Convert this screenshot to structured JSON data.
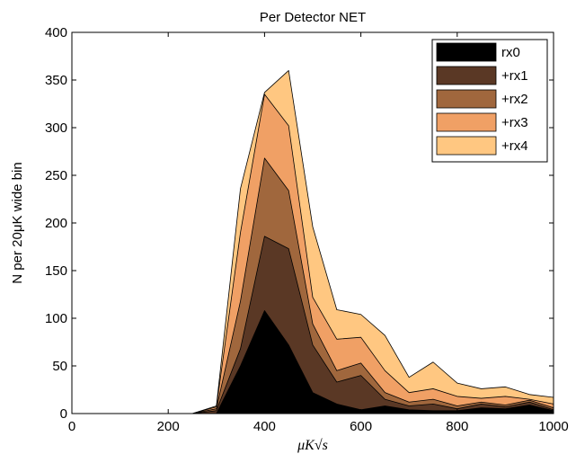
{
  "chart_data": {
    "type": "area",
    "title": "Per Detector NET",
    "xlabel": "μK√s",
    "ylabel": "N per 20μK wide bin",
    "xlim": [
      0,
      1000
    ],
    "ylim": [
      0,
      400
    ],
    "xticks": [
      0,
      200,
      400,
      600,
      800,
      1000
    ],
    "yticks": [
      0,
      50,
      100,
      150,
      200,
      250,
      300,
      350,
      400
    ],
    "grid": false,
    "stacked": true,
    "legend_position": "top-right",
    "x": [
      0,
      50,
      100,
      150,
      200,
      250,
      300,
      350,
      400,
      450,
      500,
      550,
      600,
      650,
      700,
      750,
      800,
      850,
      900,
      950,
      1000
    ],
    "series": [
      {
        "name": "rx0",
        "color": "#000000",
        "values": [
          0,
          0,
          0,
          0,
          0,
          0,
          0,
          50,
          108,
          72,
          22,
          10,
          4,
          8,
          4,
          3,
          3,
          6,
          5,
          9,
          3
        ]
      },
      {
        "name": "+rx1",
        "color": "#5a3825",
        "values": [
          0,
          0,
          0,
          0,
          0,
          0,
          3,
          68,
          186,
          173,
          72,
          33,
          40,
          15,
          8,
          10,
          5,
          10,
          7,
          12,
          4
        ]
      },
      {
        "name": "+rx2",
        "color": "#a0673d",
        "values": [
          0,
          0,
          0,
          0,
          0,
          0,
          5,
          118,
          268,
          234,
          94,
          45,
          53,
          22,
          12,
          15,
          8,
          12,
          9,
          14,
          6
        ]
      },
      {
        "name": "+rx3",
        "color": "#f0a065",
        "values": [
          0,
          0,
          0,
          0,
          0,
          0,
          7,
          190,
          335,
          302,
          122,
          78,
          80,
          45,
          22,
          26,
          18,
          16,
          18,
          15,
          10
        ]
      },
      {
        "name": "+rx4",
        "color": "#ffc781",
        "values": [
          0,
          0,
          0,
          0,
          0,
          0,
          8,
          236,
          337,
          360,
          196,
          109,
          104,
          82,
          38,
          54,
          32,
          26,
          28,
          20,
          17
        ]
      }
    ]
  }
}
